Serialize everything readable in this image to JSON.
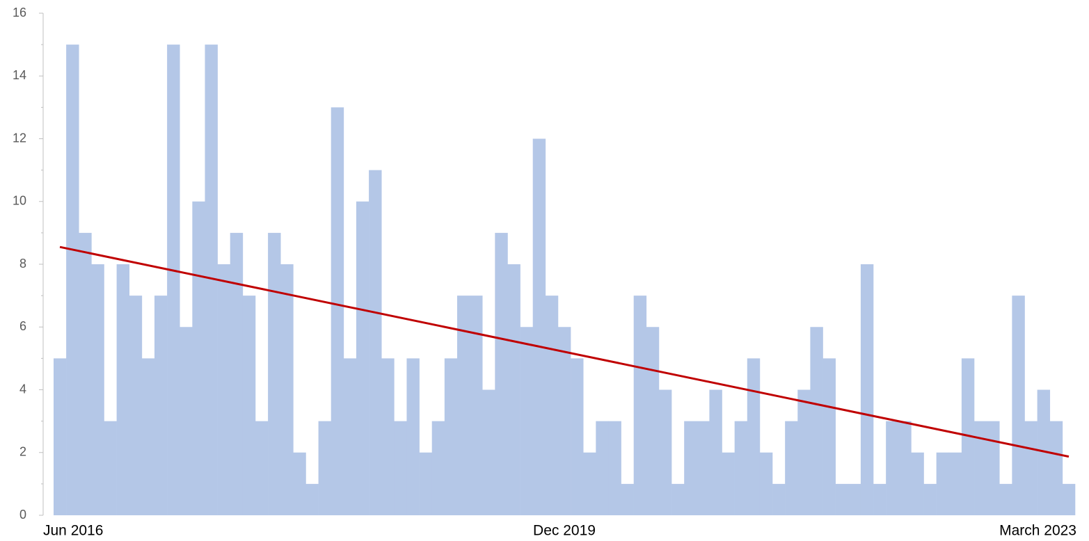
{
  "chart_data": {
    "type": "bar",
    "categories": [
      "Jun 2016",
      null,
      null,
      null,
      null,
      null,
      null,
      null,
      null,
      null,
      null,
      null,
      null,
      null,
      null,
      null,
      null,
      null,
      null,
      null,
      null,
      null,
      null,
      null,
      null,
      null,
      null,
      null,
      null,
      null,
      null,
      null,
      null,
      null,
      null,
      null,
      null,
      null,
      null,
      null,
      "Dec 2019",
      null,
      null,
      null,
      null,
      null,
      null,
      null,
      null,
      null,
      null,
      null,
      null,
      null,
      null,
      null,
      null,
      null,
      null,
      null,
      null,
      null,
      null,
      null,
      null,
      null,
      null,
      null,
      null,
      null,
      null,
      null,
      null,
      null,
      null,
      null,
      null,
      null,
      null,
      null,
      "March 2023"
    ],
    "values": [
      5,
      15,
      9,
      8,
      3,
      8,
      7,
      5,
      7,
      15,
      6,
      10,
      15,
      8,
      9,
      7,
      3,
      9,
      8,
      2,
      1,
      3,
      13,
      5,
      10,
      11,
      5,
      3,
      5,
      2,
      3,
      5,
      7,
      7,
      4,
      9,
      8,
      6,
      12,
      7,
      6,
      5,
      2,
      3,
      3,
      1,
      7,
      6,
      4,
      1,
      3,
      3,
      4,
      2,
      3,
      5,
      2,
      1,
      3,
      4,
      6,
      5,
      1,
      1,
      8,
      1,
      3,
      3,
      2,
      1,
      2,
      2,
      5,
      3,
      3,
      1,
      7,
      3,
      4,
      3,
      1
    ],
    "color": "#b4c7e7",
    "trendline": {
      "color": "#c00000",
      "values": [
        8.55,
        1.87
      ]
    },
    "ylim": [
      0,
      16
    ],
    "yticks": [
      0,
      2,
      4,
      6,
      8,
      10,
      12,
      14,
      16
    ],
    "grid": false
  }
}
